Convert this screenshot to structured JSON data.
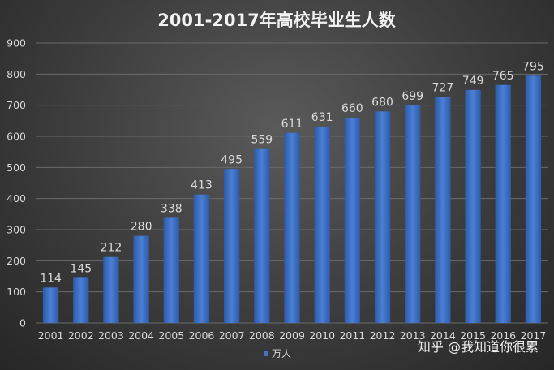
{
  "chart_data": {
    "type": "bar",
    "title": "2001-2017年高校毕业生人数",
    "categories": [
      "2001",
      "2002",
      "2003",
      "2004",
      "2005",
      "2006",
      "2007",
      "2008",
      "2009",
      "2010",
      "2011",
      "2012",
      "2013",
      "2014",
      "2015",
      "2016",
      "2017"
    ],
    "series": [
      {
        "name": "万人",
        "values": [
          114,
          145,
          212,
          280,
          338,
          413,
          495,
          559,
          611,
          631,
          660,
          680,
          699,
          727,
          749,
          765,
          795
        ]
      }
    ],
    "ylim": [
      0,
      900
    ],
    "yticks": [
      0,
      100,
      200,
      300,
      400,
      500,
      600,
      700,
      800,
      900
    ],
    "grid": true,
    "legend_position": "bottom",
    "data_labels": true,
    "bar_color": "#4472c4"
  },
  "watermark": "知乎 @我知道你很累"
}
